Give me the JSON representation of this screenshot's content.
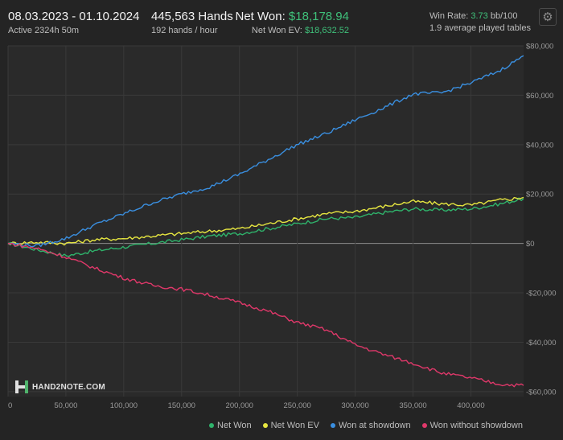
{
  "header": {
    "date_range": "08.03.2023 - 01.10.2024",
    "active": "Active 2324h 50m",
    "hands": "445,563 Hands",
    "hands_per_hour": "192 hands / hour",
    "net_won_label": "Net Won:",
    "net_won_value": "$18,178.94",
    "net_won_ev_label": "Net Won  EV:",
    "net_won_ev_value": "$18,632.52",
    "win_rate_label": "Win Rate:",
    "win_rate_value": "3.73",
    "win_rate_unit": "bb/100",
    "tables": "1.9 average played tables",
    "settings_icon": "gear-icon"
  },
  "logo": {
    "text": "HAND2NOTE.COM"
  },
  "colors": {
    "net_won": "#2fb36b",
    "net_won_ev": "#e6e640",
    "showdown": "#3a8fe0",
    "non_showdown": "#e0386a",
    "background": "#242424"
  },
  "chart_data": {
    "type": "line",
    "xlim": [
      0,
      445563
    ],
    "ylim": [
      -62000,
      80000
    ],
    "x_ticks": [
      0,
      50000,
      100000,
      150000,
      200000,
      250000,
      300000,
      350000,
      400000
    ],
    "x_tick_labels": [
      "0",
      "50,000",
      "100,000",
      "150,000",
      "200,000",
      "250,000",
      "300,000",
      "350,000",
      "400,000"
    ],
    "y_ticks": [
      80000,
      60000,
      40000,
      20000,
      0,
      -20000,
      -40000,
      -60000
    ],
    "y_tick_labels": [
      "$80,000",
      "$60,000",
      "$40,000",
      "$20,000",
      "$0",
      "-$20,000",
      "-$40,000",
      "-$60,000"
    ],
    "grid": true,
    "legend_position": "bottom-right",
    "x": [
      0,
      25000,
      50000,
      75000,
      100000,
      125000,
      150000,
      175000,
      200000,
      225000,
      250000,
      275000,
      300000,
      325000,
      350000,
      375000,
      400000,
      425000,
      445563
    ],
    "series": [
      {
        "name": "Net Won",
        "key": "net_won",
        "values": [
          0,
          -2500,
          -5000,
          -3000,
          -1500,
          0,
          1500,
          3000,
          4000,
          6000,
          8000,
          10000,
          10500,
          12500,
          14000,
          13500,
          14000,
          16000,
          18179
        ]
      },
      {
        "name": "Net Won  EV",
        "key": "net_won_ev",
        "values": [
          0,
          500,
          0,
          1500,
          2000,
          3000,
          4000,
          5000,
          6000,
          8000,
          10000,
          12000,
          13000,
          15000,
          17000,
          16000,
          15500,
          17500,
          18633
        ]
      },
      {
        "name": "Won at showdown",
        "key": "showdown",
        "values": [
          0,
          -1000,
          2000,
          7500,
          12000,
          16500,
          20000,
          23000,
          28000,
          34000,
          40000,
          44500,
          50000,
          55000,
          60500,
          61000,
          65000,
          70000,
          76000
        ]
      },
      {
        "name": "Won without showdown",
        "key": "non_showdown",
        "values": [
          0,
          -2000,
          -5500,
          -10000,
          -14000,
          -17000,
          -18500,
          -21000,
          -24000,
          -27500,
          -32000,
          -35000,
          -41000,
          -45000,
          -48500,
          -52500,
          -54500,
          -57000,
          -57500
        ]
      }
    ]
  }
}
